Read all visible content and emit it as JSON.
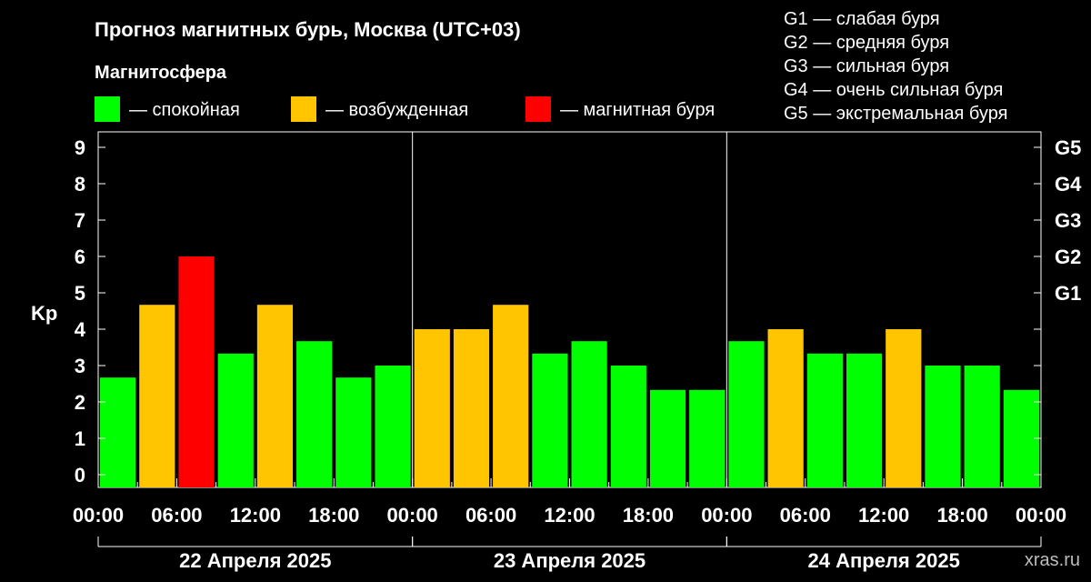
{
  "chart_data": {
    "type": "bar",
    "title": "Прогноз магнитных бурь, Москва (UTC+03)",
    "legend_title": "Магнитосфера",
    "legend": [
      {
        "label": "— спокойная",
        "color": "#00ff00"
      },
      {
        "label": "— возбужденная",
        "color": "#ffc600"
      },
      {
        "label": "— магнитная буря",
        "color": "#ff0000"
      }
    ],
    "storm_scale": [
      "G1 — слабая буря",
      "G2 — средняя буря",
      "G3 — сильная буря",
      "G4 — очень сильная буря",
      "G5 — экстремальная буря"
    ],
    "ylabel": "Kp",
    "ylim": [
      0,
      9
    ],
    "y_ticks": [
      "0",
      "1",
      "2",
      "3",
      "4",
      "5",
      "6",
      "7",
      "8",
      "9"
    ],
    "right_ticks": [
      {
        "value": 5,
        "label": "G1"
      },
      {
        "value": 6,
        "label": "G2"
      },
      {
        "value": 7,
        "label": "G3"
      },
      {
        "value": 8,
        "label": "G4"
      },
      {
        "value": 9,
        "label": "G5"
      }
    ],
    "x_tick_labels": [
      "00:00",
      "06:00",
      "12:00",
      "18:00",
      "00:00",
      "06:00",
      "12:00",
      "18:00",
      "00:00",
      "06:00",
      "12:00",
      "18:00",
      "00:00"
    ],
    "days": [
      "22 Апреля 2025",
      "23 Апреля 2025",
      "24 Апреля 2025"
    ],
    "values": [
      2.67,
      4.67,
      6.0,
      3.33,
      4.67,
      3.67,
      2.67,
      3.0,
      4.0,
      4.0,
      4.67,
      3.33,
      3.67,
      3.0,
      2.33,
      2.33,
      3.67,
      4.0,
      3.33,
      3.33,
      4.0,
      3.0,
      3.0,
      2.33
    ],
    "colors": {
      "quiet": "#00ff00",
      "active": "#ffc600",
      "storm": "#ff0000"
    }
  },
  "watermark": "xras.ru"
}
